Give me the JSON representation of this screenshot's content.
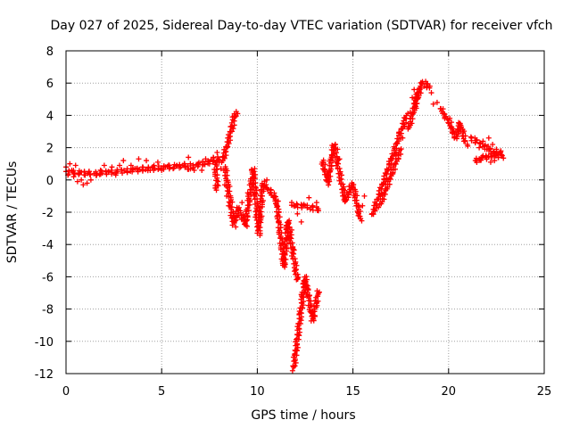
{
  "chart_data": {
    "type": "scatter",
    "title": "Day 027 of 2025, Sidereal Day-to-day VTEC variation (SDTVAR) for receiver vfch",
    "xlabel": "GPS time / hours",
    "ylabel": "SDTVAR / TECUs",
    "xlim": [
      0,
      25
    ],
    "ylim": [
      -12,
      8
    ],
    "xticks": [
      "0",
      "5",
      "10",
      "15",
      "20",
      "25"
    ],
    "yticks": [
      "8",
      "6",
      "4",
      "2",
      "0",
      "-2",
      "-4",
      "-6",
      "-8",
      "-10",
      "-12"
    ],
    "grid": true,
    "marker": "+",
    "series": [
      {
        "name": "SDTVAR",
        "color": "#ff0000",
        "points": [
          [
            0.0,
            0.8
          ],
          [
            0.1,
            0.3
          ],
          [
            0.2,
            1.0
          ],
          [
            0.3,
            0.6
          ],
          [
            0.4,
            0.2
          ],
          [
            0.5,
            0.9
          ],
          [
            0.6,
            -0.1
          ],
          [
            0.7,
            0.4
          ],
          [
            0.8,
            0.0
          ],
          [
            0.9,
            -0.3
          ],
          [
            1.0,
            0.3
          ],
          [
            1.1,
            -0.2
          ],
          [
            1.2,
            0.5
          ],
          [
            1.3,
            0.0
          ],
          [
            1.6,
            0.3
          ],
          [
            1.8,
            0.6
          ],
          [
            2.0,
            0.9
          ],
          [
            2.2,
            0.5
          ],
          [
            2.4,
            0.8
          ],
          [
            2.6,
            0.3
          ],
          [
            2.8,
            0.9
          ],
          [
            3.0,
            1.2
          ],
          [
            3.2,
            0.5
          ],
          [
            3.4,
            0.9
          ],
          [
            3.6,
            0.7
          ],
          [
            3.8,
            1.3
          ],
          [
            4.0,
            0.8
          ],
          [
            4.2,
            1.2
          ],
          [
            4.4,
            0.6
          ],
          [
            4.6,
            0.9
          ],
          [
            4.8,
            1.1
          ],
          [
            5.0,
            0.6
          ],
          [
            5.2,
            0.8
          ],
          [
            5.4,
            0.9
          ],
          [
            5.6,
            0.7
          ],
          [
            5.8,
            0.9
          ],
          [
            6.0,
            0.8
          ],
          [
            6.2,
            1.0
          ],
          [
            6.4,
            1.4
          ],
          [
            6.5,
            1.0
          ],
          [
            6.7,
            0.6
          ],
          [
            6.9,
            1.0
          ],
          [
            7.1,
            0.6
          ],
          [
            7.3,
            1.3
          ],
          [
            7.5,
            1.0
          ],
          [
            7.7,
            1.4
          ],
          [
            7.9,
            1.7
          ],
          [
            8.0,
            1.1
          ],
          [
            8.1,
            0.7
          ],
          [
            7.8,
            -0.5
          ],
          [
            8.2,
            1.2
          ],
          [
            8.4,
            2.0
          ],
          [
            8.5,
            2.6
          ],
          [
            8.6,
            3.3
          ],
          [
            8.7,
            3.9
          ],
          [
            8.8,
            4.1
          ],
          [
            8.3,
            -0.3
          ],
          [
            8.4,
            -1.0
          ],
          [
            8.5,
            -1.6
          ],
          [
            8.6,
            -2.2
          ],
          [
            8.7,
            -2.8
          ],
          [
            8.8,
            -2.6
          ],
          [
            8.9,
            -2.3
          ],
          [
            9.0,
            -1.8
          ],
          [
            9.2,
            -1.4
          ],
          [
            9.3,
            -2.3
          ],
          [
            9.4,
            -2.8
          ],
          [
            9.5,
            -0.8
          ],
          [
            9.7,
            0.6
          ],
          [
            9.8,
            -0.8
          ],
          [
            9.9,
            -2.3
          ],
          [
            10.0,
            -3.3
          ],
          [
            10.1,
            -2.5
          ],
          [
            10.2,
            -0.6
          ],
          [
            10.3,
            -0.4
          ],
          [
            10.5,
            0.0
          ],
          [
            10.7,
            -0.6
          ],
          [
            10.9,
            -1.0
          ],
          [
            11.0,
            -1.5
          ],
          [
            11.1,
            -2.6
          ],
          [
            11.2,
            -3.6
          ],
          [
            11.3,
            -4.6
          ],
          [
            11.4,
            -5.3
          ],
          [
            11.5,
            -4.1
          ],
          [
            11.6,
            -2.6
          ],
          [
            11.8,
            -3.1
          ],
          [
            11.9,
            -4.3
          ],
          [
            12.0,
            -5.6
          ],
          [
            12.1,
            -6.1
          ],
          [
            11.9,
            -1.6
          ],
          [
            12.1,
            -2.1
          ],
          [
            12.3,
            -2.6
          ],
          [
            12.5,
            -1.6
          ],
          [
            12.7,
            -1.1
          ],
          [
            12.9,
            -1.6
          ],
          [
            13.1,
            -1.4
          ],
          [
            13.2,
            -1.9
          ],
          [
            11.9,
            -11.6
          ],
          [
            12.0,
            -10.6
          ],
          [
            12.1,
            -9.6
          ],
          [
            12.2,
            -8.3
          ],
          [
            12.3,
            -7.1
          ],
          [
            12.4,
            -6.4
          ],
          [
            12.5,
            -6.2
          ],
          [
            12.6,
            -6.7
          ],
          [
            12.7,
            -7.2
          ],
          [
            12.8,
            -8.2
          ],
          [
            12.9,
            -8.6
          ],
          [
            13.0,
            -8.4
          ],
          [
            13.1,
            -7.6
          ],
          [
            13.2,
            -7.0
          ],
          [
            13.4,
            1.1
          ],
          [
            13.5,
            0.6
          ],
          [
            13.7,
            -0.1
          ],
          [
            13.8,
            0.5
          ],
          [
            13.9,
            1.5
          ],
          [
            14.0,
            2.1
          ],
          [
            14.2,
            1.9
          ],
          [
            14.3,
            1.3
          ],
          [
            14.4,
            0.3
          ],
          [
            14.5,
            -0.6
          ],
          [
            14.6,
            -1.3
          ],
          [
            14.7,
            -0.9
          ],
          [
            14.8,
            -0.4
          ],
          [
            14.9,
            -0.6
          ],
          [
            15.0,
            -0.3
          ],
          [
            15.1,
            -1.1
          ],
          [
            15.2,
            -1.6
          ],
          [
            15.3,
            -2.1
          ],
          [
            15.4,
            -2.4
          ],
          [
            15.5,
            -1.6
          ],
          [
            15.6,
            -1.0
          ],
          [
            16.0,
            -2.1
          ],
          [
            16.2,
            -1.6
          ],
          [
            16.4,
            -0.9
          ],
          [
            16.6,
            -0.2
          ],
          [
            16.8,
            0.6
          ],
          [
            17.0,
            1.2
          ],
          [
            17.2,
            1.6
          ],
          [
            17.3,
            2.3
          ],
          [
            17.4,
            2.9
          ],
          [
            17.6,
            2.6
          ],
          [
            17.7,
            3.3
          ],
          [
            17.8,
            4.0
          ],
          [
            17.9,
            3.3
          ],
          [
            18.0,
            4.2
          ],
          [
            18.1,
            5.1
          ],
          [
            18.2,
            5.6
          ],
          [
            18.3,
            5.3
          ],
          [
            18.5,
            5.6
          ],
          [
            18.6,
            6.0
          ],
          [
            18.8,
            6.1
          ],
          [
            18.9,
            5.9
          ],
          [
            19.0,
            5.7
          ],
          [
            19.1,
            5.4
          ],
          [
            19.2,
            4.7
          ],
          [
            19.4,
            4.8
          ],
          [
            19.6,
            4.4
          ],
          [
            19.8,
            3.9
          ],
          [
            20.0,
            3.7
          ],
          [
            20.1,
            3.2
          ],
          [
            20.2,
            2.9
          ],
          [
            20.3,
            2.6
          ],
          [
            20.5,
            3.1
          ],
          [
            20.6,
            3.5
          ],
          [
            20.8,
            2.4
          ],
          [
            21.0,
            2.1
          ],
          [
            21.2,
            2.6
          ],
          [
            21.4,
            2.3
          ],
          [
            21.6,
            2.0
          ],
          [
            21.8,
            2.4
          ],
          [
            22.0,
            1.9
          ],
          [
            22.1,
            2.6
          ],
          [
            22.2,
            1.6
          ],
          [
            22.3,
            2.2
          ],
          [
            22.4,
            1.2
          ],
          [
            22.5,
            1.9
          ],
          [
            22.6,
            1.4
          ],
          [
            22.7,
            1.7
          ],
          [
            22.8,
            1.5
          ],
          [
            21.4,
            1.2
          ],
          [
            21.6,
            1.3
          ],
          [
            21.8,
            1.5
          ],
          [
            22.0,
            1.4
          ],
          [
            22.2,
            1.1
          ]
        ],
        "segments": [
          [
            0.0,
            0.5,
            1.4,
            0.4
          ],
          [
            1.5,
            0.4,
            6.3,
            0.9
          ],
          [
            6.3,
            0.7,
            8.2,
            1.4
          ],
          [
            8.2,
            1.2,
            8.9,
            4.2
          ],
          [
            7.8,
            1.2,
            7.9,
            -0.6
          ],
          [
            8.3,
            0.8,
            8.8,
            -2.8
          ],
          [
            8.8,
            -2.6,
            9.0,
            -1.8
          ],
          [
            9.0,
            -1.8,
            9.4,
            -2.8
          ],
          [
            9.4,
            -2.6,
            9.8,
            0.7
          ],
          [
            9.8,
            0.5,
            10.1,
            -3.4
          ],
          [
            10.1,
            -3.0,
            10.3,
            -0.2
          ],
          [
            10.3,
            -0.2,
            11.0,
            -1.2
          ],
          [
            11.0,
            -1.2,
            11.4,
            -5.4
          ],
          [
            11.4,
            -5.2,
            11.6,
            -2.5
          ],
          [
            11.6,
            -2.7,
            12.1,
            -6.2
          ],
          [
            11.8,
            -1.5,
            13.2,
            -1.8
          ],
          [
            11.9,
            -11.7,
            12.5,
            -6.1
          ],
          [
            12.5,
            -6.1,
            12.9,
            -8.7
          ],
          [
            12.9,
            -8.6,
            13.2,
            -6.9
          ],
          [
            13.4,
            1.2,
            13.7,
            -0.2
          ],
          [
            13.7,
            -0.1,
            14.0,
            2.2
          ],
          [
            14.0,
            2.1,
            14.6,
            -1.3
          ],
          [
            14.6,
            -1.3,
            15.0,
            -0.3
          ],
          [
            15.0,
            -0.3,
            15.4,
            -2.5
          ],
          [
            16.0,
            -2.2,
            17.8,
            4.0
          ],
          [
            16.4,
            -1.6,
            17.5,
            1.9
          ],
          [
            17.9,
            3.2,
            18.6,
            6.0
          ],
          [
            18.6,
            6.0,
            19.0,
            5.7
          ],
          [
            18.2,
            4.4,
            18.4,
            5.5
          ],
          [
            19.6,
            4.4,
            19.9,
            3.8
          ],
          [
            20.0,
            3.7,
            20.4,
            2.6
          ],
          [
            20.4,
            2.6,
            20.6,
            3.5
          ],
          [
            20.6,
            3.5,
            20.9,
            2.3
          ],
          [
            21.2,
            2.6,
            22.8,
            1.4
          ],
          [
            21.4,
            1.2,
            22.8,
            1.7
          ]
        ]
      }
    ]
  }
}
